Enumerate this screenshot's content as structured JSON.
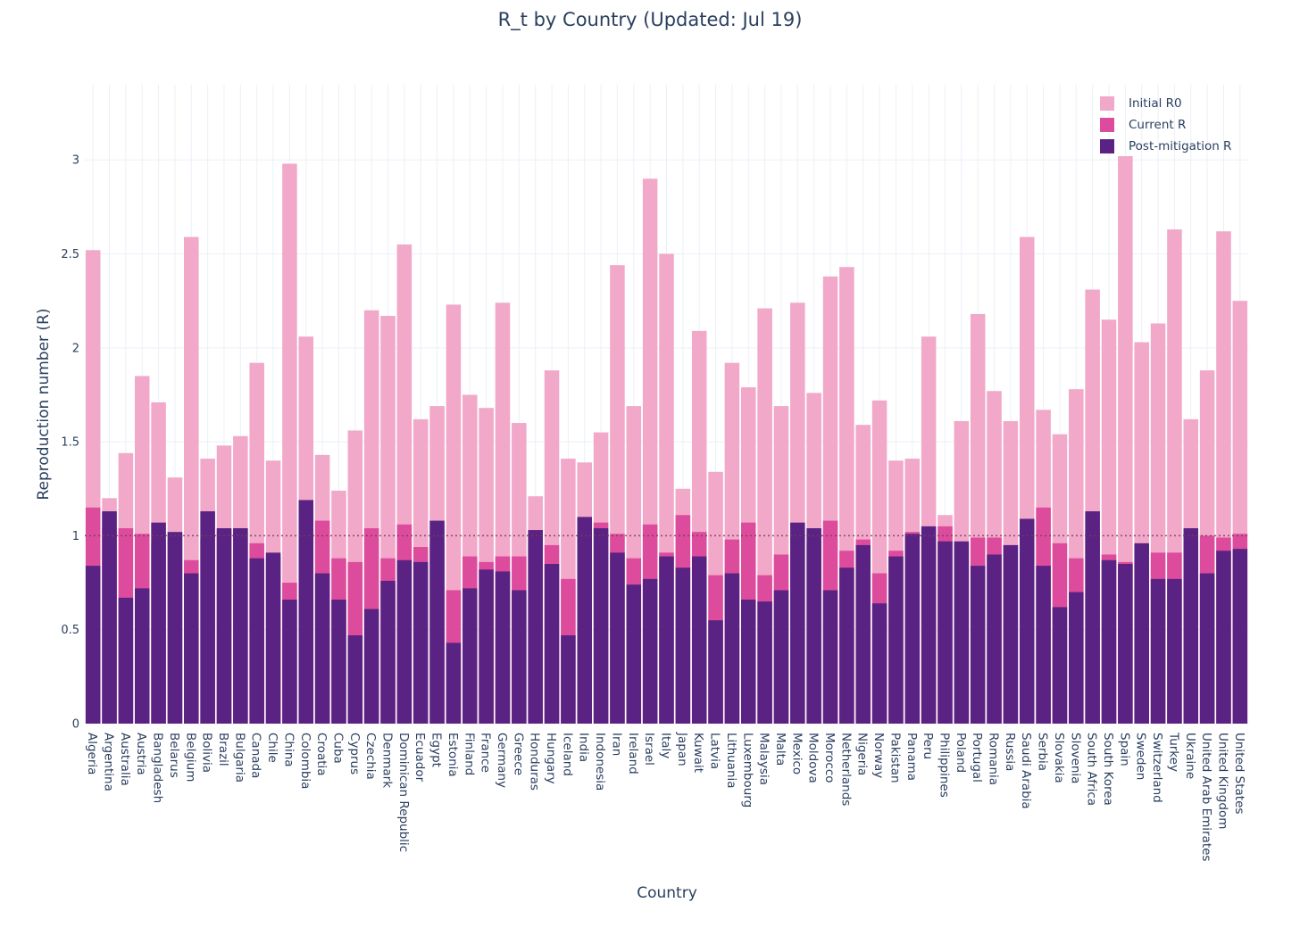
{
  "chart_data": {
    "type": "bar",
    "barmode": "overlay",
    "title": "R_t by Country (Updated: Jul 19)",
    "xlabel": "Country",
    "ylabel": "Reproduction number (R)",
    "ylim": [
      0,
      3.4
    ],
    "yticks": [
      0,
      0.5,
      1,
      1.5,
      2,
      2.5,
      3
    ],
    "ytick_labels": [
      "0",
      "0.5",
      "1",
      "1.5",
      "2",
      "2.5",
      "3"
    ],
    "reference_line": {
      "y": 1,
      "style": "dotted"
    },
    "grid": true,
    "legend_position": "top-right",
    "categories": [
      "Algeria",
      "Argentina",
      "Australia",
      "Austria",
      "Bangladesh",
      "Belarus",
      "Belgium",
      "Bolivia",
      "Brazil",
      "Bulgaria",
      "Canada",
      "Chile",
      "China",
      "Colombia",
      "Croatia",
      "Cuba",
      "Cyprus",
      "Czechia",
      "Denmark",
      "Dominican Republic",
      "Ecuador",
      "Egypt",
      "Estonia",
      "Finland",
      "France",
      "Germany",
      "Greece",
      "Honduras",
      "Hungary",
      "Iceland",
      "India",
      "Indonesia",
      "Iran",
      "Ireland",
      "Israel",
      "Italy",
      "Japan",
      "Kuwait",
      "Latvia",
      "Lithuania",
      "Luxembourg",
      "Malaysia",
      "Malta",
      "Mexico",
      "Moldova",
      "Morocco",
      "Netherlands",
      "Nigeria",
      "Norway",
      "Pakistan",
      "Panama",
      "Peru",
      "Philippines",
      "Poland",
      "Portugal",
      "Romania",
      "Russia",
      "Saudi Arabia",
      "Serbia",
      "Slovakia",
      "Slovenia",
      "South Africa",
      "South Korea",
      "Spain",
      "Sweden",
      "Switzerland",
      "Turkey",
      "Ukraine",
      "United Arab Emirates",
      "United Kingdom",
      "United States"
    ],
    "series": [
      {
        "name": "Initial R0",
        "color": "#f1a8c9",
        "values": [
          2.52,
          1.2,
          1.44,
          1.85,
          1.71,
          1.31,
          2.59,
          1.41,
          1.48,
          1.53,
          1.92,
          1.4,
          2.98,
          2.06,
          1.43,
          1.24,
          1.56,
          2.2,
          2.17,
          2.55,
          1.62,
          1.69,
          2.23,
          1.75,
          1.68,
          2.24,
          1.6,
          1.21,
          1.88,
          1.41,
          1.39,
          1.55,
          2.44,
          1.69,
          2.9,
          2.5,
          1.25,
          2.09,
          1.34,
          1.92,
          1.79,
          2.21,
          1.69,
          2.24,
          1.76,
          2.38,
          2.43,
          1.59,
          1.72,
          1.4,
          1.41,
          2.06,
          1.11,
          1.61,
          2.18,
          1.77,
          1.61,
          2.59,
          1.67,
          1.54,
          1.78,
          2.31,
          2.15,
          3.02,
          2.03,
          2.13,
          2.63,
          1.62,
          1.88,
          2.62,
          2.25
        ]
      },
      {
        "name": "Current R",
        "color": "#dd4b9d",
        "values": [
          1.15,
          1.04,
          1.04,
          1.01,
          0.96,
          1.01,
          0.87,
          0.98,
          1.03,
          1.04,
          0.96,
          0.89,
          0.75,
          1.0,
          1.08,
          0.88,
          0.86,
          1.04,
          0.88,
          1.06,
          0.94,
          0.96,
          0.71,
          0.89,
          0.86,
          0.89,
          0.89,
          1.03,
          0.95,
          0.77,
          1.06,
          1.07,
          1.01,
          0.88,
          1.06,
          0.91,
          1.11,
          1.02,
          0.79,
          0.98,
          1.07,
          0.79,
          0.9,
          1.01,
          0.96,
          1.08,
          0.92,
          0.98,
          0.8,
          0.92,
          1.02,
          0.99,
          1.05,
          0.96,
          0.99,
          0.99,
          0.95,
          0.94,
          1.15,
          0.96,
          0.88,
          1.02,
          0.9,
          0.86,
          0.86,
          0.91,
          0.91,
          0.97,
          1.0,
          0.99,
          1.01
        ]
      },
      {
        "name": "Post-mitigation R",
        "color": "#5a2383",
        "values": [
          0.84,
          1.13,
          0.67,
          0.72,
          1.07,
          1.02,
          0.8,
          1.13,
          1.04,
          1.04,
          0.88,
          0.91,
          0.66,
          1.19,
          0.8,
          0.66,
          0.47,
          0.61,
          0.76,
          0.87,
          0.86,
          1.08,
          0.43,
          0.72,
          0.82,
          0.81,
          0.71,
          1.03,
          0.85,
          0.47,
          1.1,
          1.04,
          0.91,
          0.74,
          0.77,
          0.89,
          0.83,
          0.89,
          0.55,
          0.8,
          0.66,
          0.65,
          0.71,
          1.07,
          1.04,
          0.71,
          0.83,
          0.95,
          0.64,
          0.89,
          1.01,
          1.05,
          0.97,
          0.97,
          0.84,
          0.9,
          0.95,
          1.09,
          0.84,
          0.62,
          0.7,
          1.13,
          0.87,
          0.85,
          0.96,
          0.77,
          0.77,
          1.04,
          0.8,
          0.92,
          0.93
        ]
      }
    ]
  }
}
